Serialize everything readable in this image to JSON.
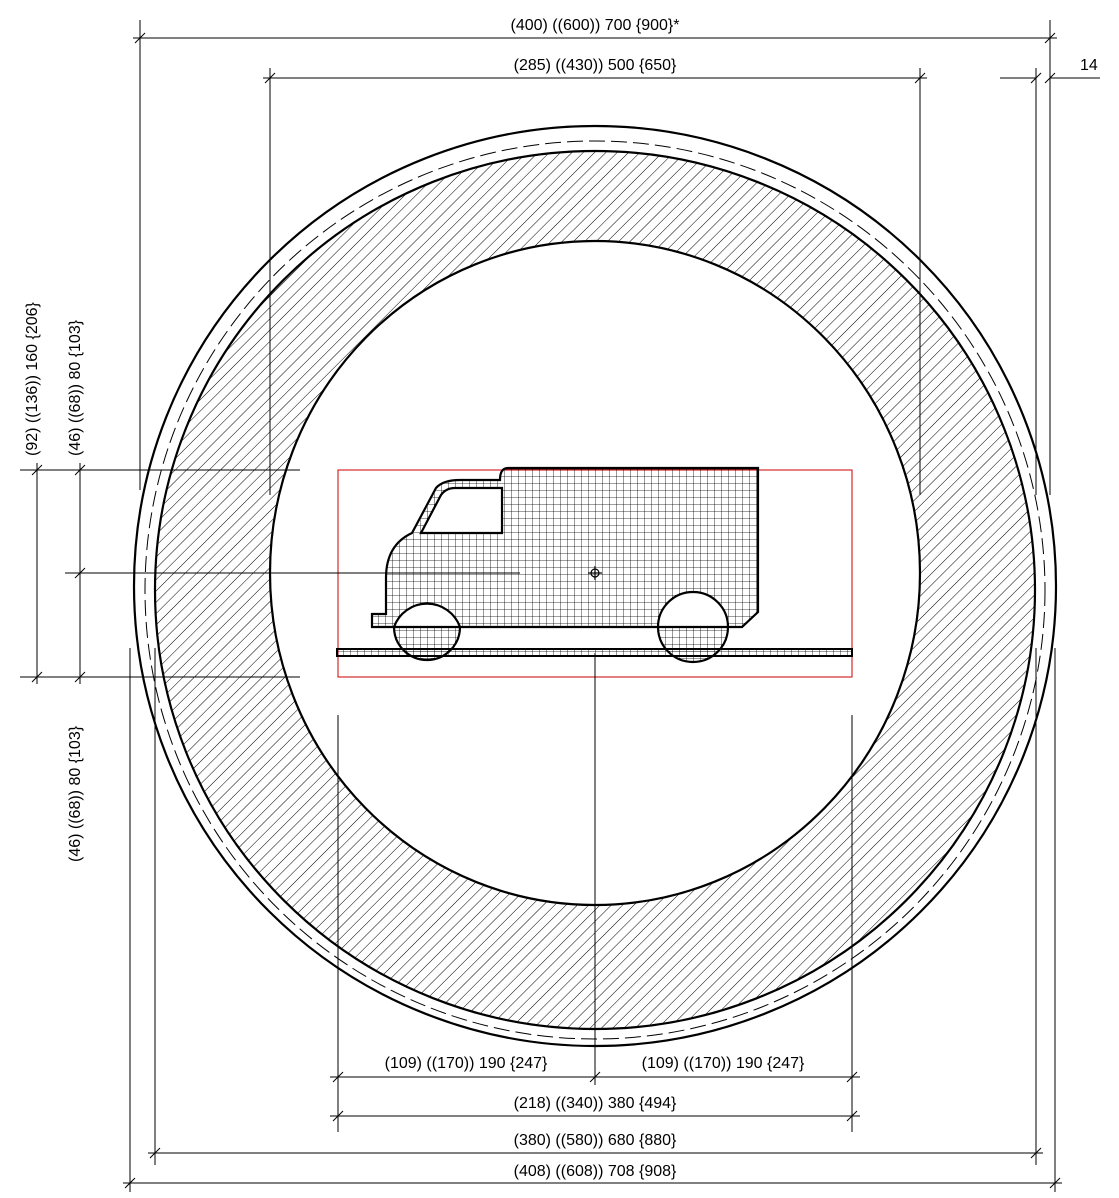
{
  "colors": {
    "line": "#000000",
    "frame": "#cc0000",
    "background": "#ffffff"
  },
  "dimensions": {
    "top_outer": "(400) ((600)) 700 {900}*",
    "top_inner": "(285) ((430)) 500 {650}",
    "edge_width": "14",
    "left_total_height": "(92) ((136)) 160 {206}",
    "left_upper_half": "(46) ((68)) 80 {103}",
    "left_lower_half": "(46) ((68)) 80 {103}",
    "bottom_left_half": "(109) ((170)) 190 {247}",
    "bottom_right_half": "(109) ((170)) 190 {247}",
    "bottom_symbol_width": "(218) ((340)) 380 {494}",
    "bottom_ring_outer": "(380) ((580)) 680 {880}",
    "bottom_overall": "(408) ((608)) 708 {908}"
  }
}
